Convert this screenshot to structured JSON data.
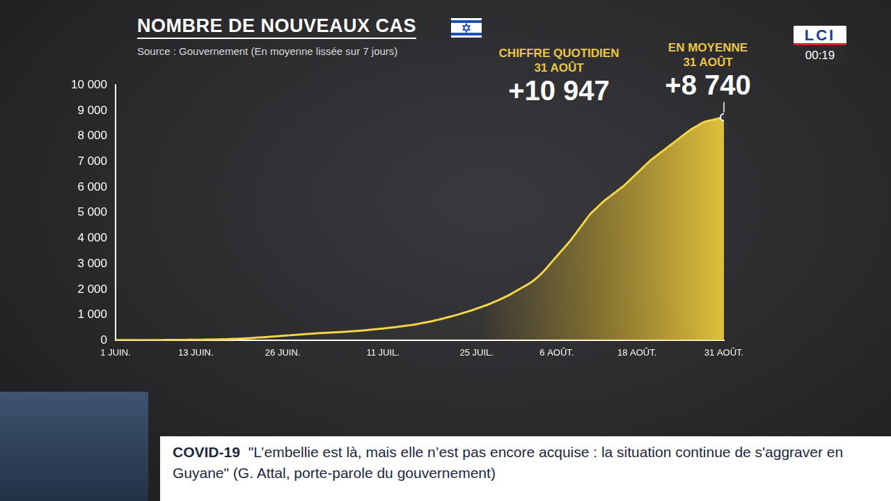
{
  "chart_data": {
    "type": "line",
    "title": "NOMBRE DE NOUVEAUX CAS",
    "subtitle": "Source : Gouvernement (En moyenne lissée sur 7 jours)",
    "annotations": [
      {
        "heading": [
          "CHIFFRE QUOTIDIEN",
          "31 AOÛT"
        ],
        "text": "+10 947"
      },
      {
        "heading": [
          "EN MOYENNE",
          "31 AOÛT"
        ],
        "text": "+8 740"
      }
    ],
    "categories": [
      "1 JUIN.",
      null,
      null,
      null,
      null,
      null,
      null,
      null,
      null,
      null,
      null,
      null,
      "13 JUIN.",
      null,
      null,
      null,
      null,
      null,
      null,
      null,
      null,
      null,
      null,
      null,
      null,
      "26 JUIN.",
      null,
      null,
      null,
      null,
      null,
      null,
      null,
      null,
      null,
      null,
      null,
      null,
      null,
      null,
      "11 JUIL.",
      null,
      null,
      null,
      null,
      null,
      null,
      null,
      null,
      null,
      null,
      null,
      null,
      null,
      "25 JUIL.",
      null,
      null,
      null,
      null,
      null,
      null,
      null,
      null,
      null,
      null,
      null,
      "6 AOÛT.",
      null,
      null,
      null,
      null,
      null,
      null,
      null,
      null,
      null,
      null,
      null,
      "18 AOÛT.",
      null,
      null,
      null,
      null,
      null,
      null,
      null,
      null,
      null,
      null,
      null,
      null,
      "31 AOÛT."
    ],
    "values": [
      15,
      15,
      16,
      17,
      18,
      19,
      20,
      21,
      22,
      24,
      26,
      28,
      30,
      33,
      37,
      42,
      50,
      58,
      68,
      80,
      95,
      110,
      125,
      145,
      165,
      185,
      205,
      225,
      245,
      265,
      280,
      295,
      310,
      325,
      340,
      355,
      375,
      395,
      420,
      445,
      470,
      500,
      530,
      560,
      600,
      640,
      690,
      740,
      800,
      860,
      930,
      1000,
      1080,
      1160,
      1250,
      1340,
      1440,
      1550,
      1670,
      1800,
      1950,
      2100,
      2250,
      2450,
      2700,
      3000,
      3300,
      3600,
      3900,
      4250,
      4600,
      4950,
      5200,
      5450,
      5650,
      5850,
      6050,
      6300,
      6550,
      6800,
      7050,
      7250,
      7450,
      7650,
      7850,
      8050,
      8250,
      8400,
      8550,
      8620,
      8680,
      8740
    ],
    "color": "#f4d548",
    "ylim": [
      0,
      10000
    ],
    "yticks": [
      0,
      {
        "value": 1000,
        "label": "1 000"
      },
      {
        "value": 2000,
        "label": "2 000"
      },
      {
        "value": 3000,
        "label": "3 000"
      },
      {
        "value": 4000,
        "label": "4 000"
      },
      {
        "value": 5000,
        "label": "5 000"
      },
      {
        "value": 6000,
        "label": "6 000"
      },
      {
        "value": 7000,
        "label": "7 000"
      },
      {
        "value": 8000,
        "label": "8 000"
      },
      {
        "value": 9000,
        "label": "9 000"
      },
      {
        "value": 10000,
        "label": "10 000"
      }
    ],
    "grid": false
  },
  "broadcast": {
    "channel": "LCI",
    "time": "00:19",
    "ticker": {
      "tag": "COVID-19",
      "text": "\"L’embellie est là, mais elle n’est pas encore acquise : la situation continue de s'aggraver en Guyane\" (G. Attal, porte-parole du gouvernement)"
    }
  }
}
